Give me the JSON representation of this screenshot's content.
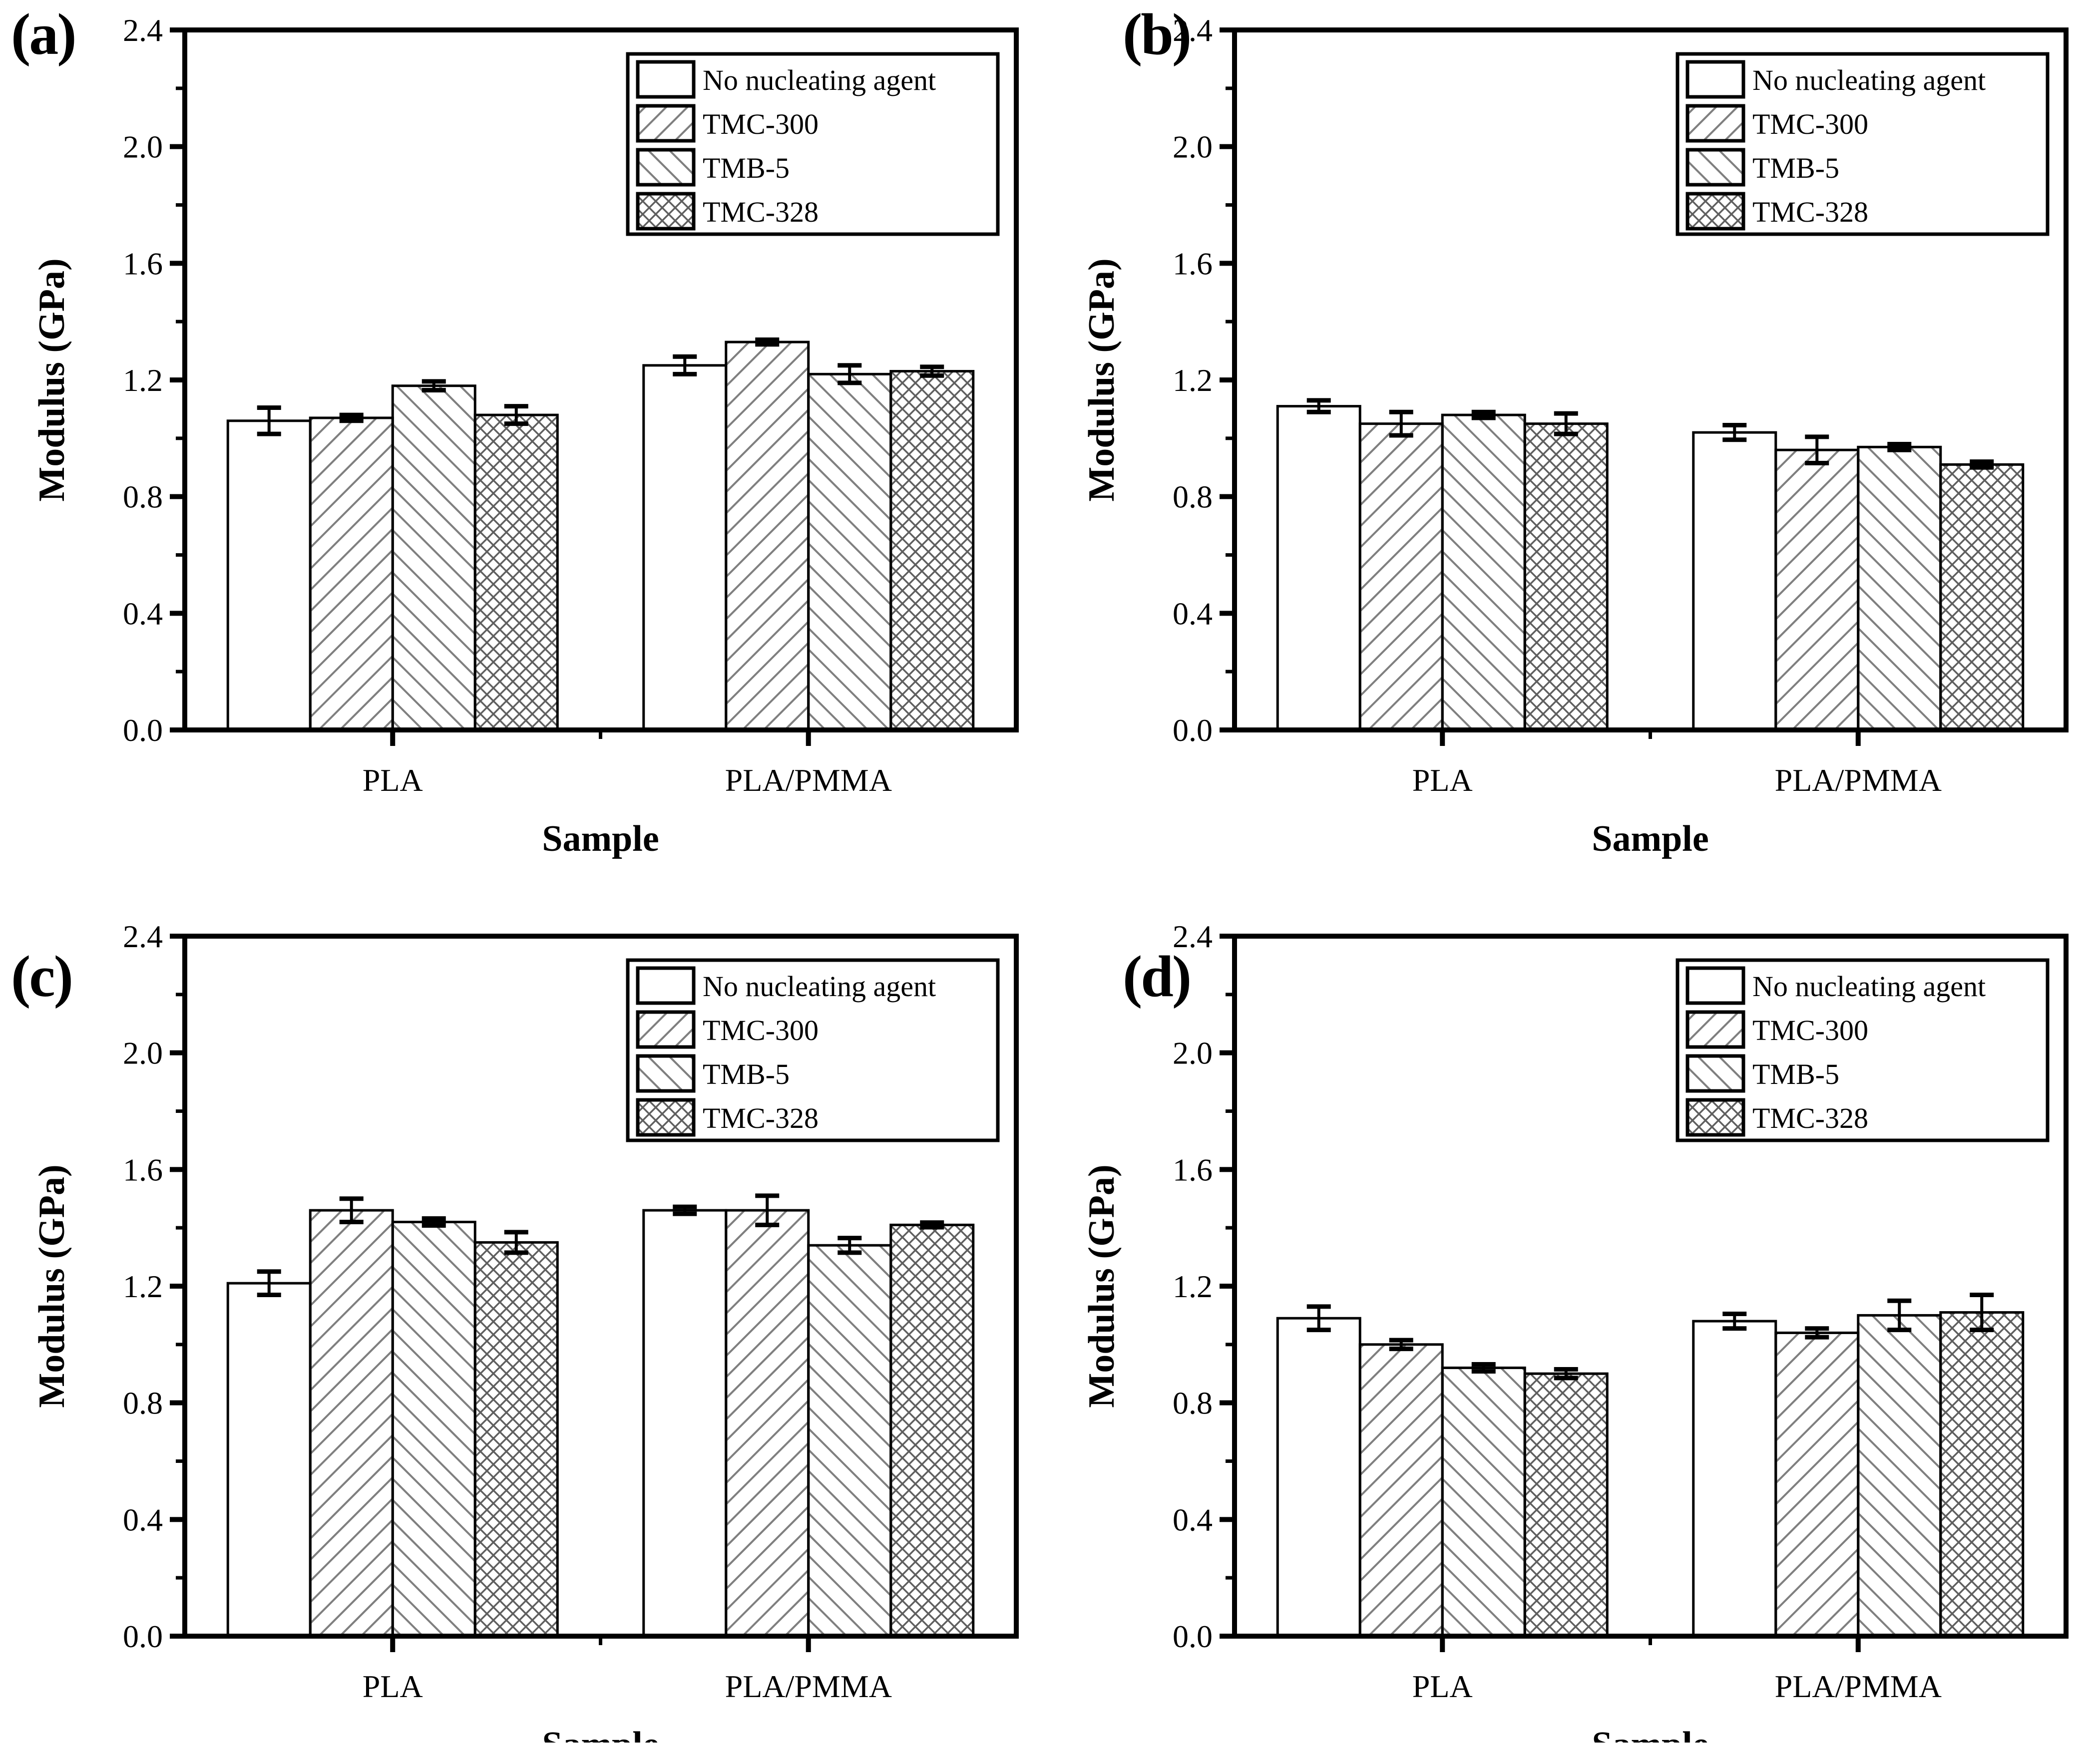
{
  "figure": {
    "background": "#ffffff",
    "ink_color": "#000000",
    "hatch_color": "#7f7f7f",
    "crosshatch_color": "#5f5f5f",
    "panel_letters": [
      "(a)",
      "(b)",
      "(c)",
      "(d)"
    ]
  },
  "chart_data": [
    {
      "type": "bar",
      "panel_label": "(a)",
      "title": "",
      "xlabel": "Sample",
      "ylabel": "Modulus (GPa)",
      "ylim": [
        0.0,
        2.4
      ],
      "ytick_interval": 0.4,
      "ytick_minor_interval": 0.2,
      "ytick_labels": [
        "0.0",
        "0.4",
        "0.8",
        "1.2",
        "1.6",
        "2.0",
        "2.4"
      ],
      "categories": [
        "PLA",
        "PLA/PMMA"
      ],
      "grid": false,
      "error_bars": true,
      "legend_position": "top-right",
      "series": [
        {
          "name": "No nucleating agent",
          "pattern": "solid-white",
          "values": [
            1.06,
            1.25
          ],
          "errors": [
            0.045,
            0.03
          ]
        },
        {
          "name": "TMC-300",
          "pattern": "diagonal-forward-hatch",
          "values": [
            1.07,
            1.33
          ],
          "errors": [
            0.01,
            0.008
          ]
        },
        {
          "name": "TMB-5",
          "pattern": "diagonal-backward-hatch",
          "values": [
            1.18,
            1.22
          ],
          "errors": [
            0.015,
            0.03
          ]
        },
        {
          "name": "TMC-328",
          "pattern": "diagonal-crosshatch",
          "values": [
            1.08,
            1.23
          ],
          "errors": [
            0.03,
            0.015
          ]
        }
      ]
    },
    {
      "type": "bar",
      "panel_label": "(b)",
      "title": "",
      "xlabel": "Sample",
      "ylabel": "Modulus (GPa)",
      "ylim": [
        0.0,
        2.4
      ],
      "ytick_interval": 0.4,
      "ytick_minor_interval": 0.2,
      "ytick_labels": [
        "0.0",
        "0.4",
        "0.8",
        "1.2",
        "1.6",
        "2.0",
        "2.4"
      ],
      "categories": [
        "PLA",
        "PLA/PMMA"
      ],
      "grid": false,
      "error_bars": true,
      "legend_position": "top-right",
      "series": [
        {
          "name": "No nucleating agent",
          "pattern": "solid-white",
          "values": [
            1.11,
            1.02
          ],
          "errors": [
            0.02,
            0.025
          ]
        },
        {
          "name": "TMC-300",
          "pattern": "diagonal-forward-hatch",
          "values": [
            1.05,
            0.96
          ],
          "errors": [
            0.04,
            0.045
          ]
        },
        {
          "name": "TMB-5",
          "pattern": "diagonal-backward-hatch",
          "values": [
            1.08,
            0.97
          ],
          "errors": [
            0.01,
            0.01
          ]
        },
        {
          "name": "TMC-328",
          "pattern": "diagonal-crosshatch",
          "values": [
            1.05,
            0.91
          ],
          "errors": [
            0.035,
            0.01
          ]
        }
      ]
    },
    {
      "type": "bar",
      "panel_label": "(c)",
      "title": "",
      "xlabel": "Sample",
      "ylabel": "Modulus (GPa)",
      "ylim": [
        0.0,
        2.4
      ],
      "ytick_interval": 0.4,
      "ytick_minor_interval": 0.2,
      "ytick_labels": [
        "0.0",
        "0.4",
        "0.8",
        "1.2",
        "1.6",
        "2.0",
        "2.4"
      ],
      "categories": [
        "PLA",
        "PLA/PMMA"
      ],
      "grid": false,
      "error_bars": true,
      "legend_position": "top-right",
      "series": [
        {
          "name": "No nucleating agent",
          "pattern": "solid-white",
          "values": [
            1.21,
            1.46
          ],
          "errors": [
            0.04,
            0.012
          ]
        },
        {
          "name": "TMC-300",
          "pattern": "diagonal-forward-hatch",
          "values": [
            1.46,
            1.46
          ],
          "errors": [
            0.04,
            0.05
          ]
        },
        {
          "name": "TMB-5",
          "pattern": "diagonal-backward-hatch",
          "values": [
            1.42,
            1.34
          ],
          "errors": [
            0.012,
            0.025
          ]
        },
        {
          "name": "TMC-328",
          "pattern": "diagonal-crosshatch",
          "values": [
            1.35,
            1.41
          ],
          "errors": [
            0.035,
            0.008
          ]
        }
      ]
    },
    {
      "type": "bar",
      "panel_label": "(d)",
      "title": "",
      "xlabel": "Sample",
      "ylabel": "Modulus (GPa)",
      "ylim": [
        0.0,
        2.4
      ],
      "ytick_interval": 0.4,
      "ytick_minor_interval": 0.2,
      "ytick_labels": [
        "0.0",
        "0.4",
        "0.8",
        "1.2",
        "1.6",
        "2.0",
        "2.4"
      ],
      "categories": [
        "PLA",
        "PLA/PMMA"
      ],
      "grid": false,
      "error_bars": true,
      "legend_position": "top-right",
      "series": [
        {
          "name": "No nucleating agent",
          "pattern": "solid-white",
          "values": [
            1.09,
            1.08
          ],
          "errors": [
            0.04,
            0.025
          ]
        },
        {
          "name": "TMC-300",
          "pattern": "diagonal-forward-hatch",
          "values": [
            1.0,
            1.04
          ],
          "errors": [
            0.015,
            0.015
          ]
        },
        {
          "name": "TMB-5",
          "pattern": "diagonal-backward-hatch",
          "values": [
            0.92,
            1.1
          ],
          "errors": [
            0.012,
            0.05
          ]
        },
        {
          "name": "TMC-328",
          "pattern": "diagonal-crosshatch",
          "values": [
            0.9,
            1.11
          ],
          "errors": [
            0.015,
            0.06
          ]
        }
      ]
    }
  ]
}
